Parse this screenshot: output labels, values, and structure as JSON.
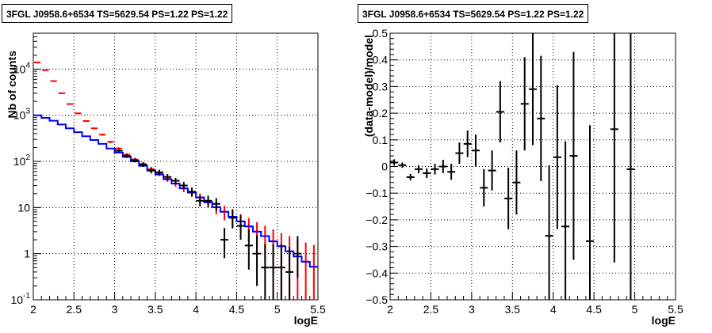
{
  "chart_data": [
    {
      "type": "step",
      "title": "3FGL J0958.6+6534 TS=5629.54 PS=1.22 PS=1.22",
      "xlabel": "logE",
      "ylabel": "Nb of counts",
      "xlim": [
        2,
        5.5
      ],
      "ylim": [
        0.1,
        60000
      ],
      "yscale": "log",
      "grid": true,
      "x_ticks": [
        "2",
        "2.5",
        "3",
        "3.5",
        "4",
        "4.5",
        "5",
        "5.5"
      ],
      "y_ticks": [
        {
          "v": 0.1,
          "label": "10",
          "exp": "-1"
        },
        {
          "v": 1,
          "label": "1",
          "exp": ""
        },
        {
          "v": 10,
          "label": "10",
          "exp": ""
        },
        {
          "v": 100,
          "label": "10",
          "exp": "2"
        },
        {
          "v": 1000,
          "label": "10",
          "exp": "3"
        },
        {
          "v": 10000,
          "label": "10",
          "exp": "4"
        }
      ],
      "bin_edges": [
        2.0,
        2.1,
        2.2,
        2.3,
        2.4,
        2.5,
        2.6,
        2.7,
        2.8,
        2.9,
        3.0,
        3.1,
        3.2,
        3.3,
        3.4,
        3.5,
        3.6,
        3.7,
        3.8,
        3.9,
        4.0,
        4.1,
        4.2,
        4.3,
        4.4,
        4.5,
        4.6,
        4.7,
        4.8,
        4.9,
        5.0,
        5.1,
        5.2,
        5.3,
        5.4,
        5.5
      ],
      "series": [
        {
          "kind": "model_step",
          "color": "#0000ff",
          "values": [
            1000,
            880,
            760,
            630,
            520,
            430,
            350,
            290,
            240,
            190,
            155,
            125,
            100,
            80,
            64,
            52,
            41,
            33,
            26,
            21,
            16.5,
            13,
            10.2,
            8.1,
            6.3,
            5.0,
            3.9,
            3.0,
            2.4,
            1.85,
            1.45,
            1.12,
            0.87,
            0.67,
            0.52
          ]
        },
        {
          "kind": "errorbars",
          "color": "#ff0000",
          "x": [
            2.05,
            2.15,
            2.25,
            2.35,
            2.45,
            2.55,
            2.65,
            2.75,
            2.85,
            2.95,
            3.05,
            3.15,
            3.25,
            3.35,
            3.45,
            3.55,
            3.65,
            3.75,
            3.85,
            3.95,
            4.05,
            4.15,
            4.25,
            4.35,
            4.45,
            4.55,
            4.65,
            4.75,
            4.85,
            4.95,
            5.05,
            5.15,
            5.25,
            5.35,
            5.45
          ],
          "y": [
            14000,
            9500,
            5500,
            3000,
            1750,
            1100,
            750,
            520,
            380,
            265,
            190,
            140,
            110,
            88,
            68,
            55,
            42,
            33,
            26,
            21,
            16.5,
            13,
            10.2,
            8.1,
            6.3,
            5.0,
            3.9,
            3.0,
            2.4,
            1.85,
            1.45,
            1.12,
            0.87,
            0.67,
            0.52
          ],
          "ylo": [
            13800,
            9350,
            5400,
            2950,
            1700,
            1060,
            720,
            495,
            360,
            250,
            178,
            130,
            100,
            79,
            60,
            48,
            36,
            28,
            21.5,
            17,
            12.8,
            9.8,
            7.1,
            5.3,
            3.8,
            2.8,
            1.9,
            1.2,
            0.75,
            0.35,
            0.1,
            0.1,
            0.1,
            0.1,
            0.1
          ],
          "yhi": [
            14200,
            9650,
            5600,
            3050,
            1800,
            1140,
            780,
            545,
            400,
            280,
            202,
            150,
            120,
            97,
            76,
            62,
            48,
            38.5,
            30.5,
            25,
            20.2,
            16.2,
            13.3,
            10.9,
            8.8,
            7.2,
            5.9,
            4.8,
            4.05,
            3.35,
            2.8,
            2.4,
            2.0,
            1.75,
            1.55
          ]
        },
        {
          "kind": "errorbars",
          "color": "#000000",
          "x": [
            3.05,
            3.15,
            3.25,
            3.35,
            3.45,
            3.55,
            3.65,
            3.75,
            3.85,
            3.95,
            4.05,
            4.15,
            4.25,
            4.35,
            4.45,
            4.55,
            4.65,
            4.75,
            4.85,
            4.95,
            5.05,
            5.15,
            5.25
          ],
          "y": [
            170,
            130,
            105,
            85,
            63,
            58,
            46,
            38,
            30,
            22,
            14,
            14,
            12,
            2,
            6,
            4,
            1.5,
            1,
            0.5,
            0.5,
            0.5,
            0.4,
            1
          ],
          "ylo": [
            158,
            119,
            95,
            76,
            55,
            50,
            39,
            32,
            25,
            17.5,
            10.5,
            10.5,
            8.5,
            0.8,
            3.5,
            2.0,
            0.45,
            0.2,
            0.1,
            0.1,
            0.1,
            0.1,
            0.3
          ],
          "yhi": [
            183,
            142,
            115,
            95,
            71,
            66,
            53,
            44,
            36,
            27,
            18,
            18,
            16,
            3.6,
            9.2,
            6.8,
            3.3,
            2.5,
            1.6,
            1.6,
            1.6,
            1.4,
            2.4
          ]
        }
      ]
    },
    {
      "type": "errorbar",
      "title": "3FGL J0958.6+6534 TS=5629.54 PS=1.22 PS=1.22",
      "xlabel": "logE",
      "ylabel": "(data-model)/model",
      "xlim": [
        2,
        5.5
      ],
      "ylim": [
        -0.5,
        0.5
      ],
      "grid": true,
      "x_ticks": [
        "2",
        "2.5",
        "3",
        "3.5",
        "4",
        "4.5",
        "5",
        "5.5"
      ],
      "y_ticks": [
        "-0.5",
        "-0.4",
        "-0.3",
        "-0.2",
        "-0.1",
        "0",
        "0.1",
        "0.2",
        "0.3",
        "0.4",
        "0.5"
      ],
      "points": {
        "x": [
          2.05,
          2.15,
          2.25,
          2.35,
          2.45,
          2.55,
          2.65,
          2.75,
          2.85,
          2.95,
          3.05,
          3.15,
          3.25,
          3.35,
          3.45,
          3.55,
          3.65,
          3.75,
          3.85,
          3.95,
          4.05,
          4.15,
          4.25,
          4.45,
          4.75,
          4.95
        ],
        "y": [
          0.015,
          0.005,
          -0.04,
          -0.01,
          -0.025,
          -0.01,
          0.0,
          -0.02,
          0.05,
          0.085,
          0.06,
          -0.08,
          -0.015,
          0.205,
          -0.12,
          -0.06,
          0.235,
          0.29,
          0.18,
          -0.26,
          0.035,
          -0.225,
          0.04,
          -0.28,
          0.14,
          -0.01
        ],
        "err": [
          0.012,
          0.01,
          0.012,
          0.015,
          0.018,
          0.02,
          0.025,
          0.03,
          0.04,
          0.05,
          0.06,
          0.07,
          0.075,
          0.115,
          0.115,
          0.12,
          0.175,
          0.21,
          0.235,
          0.265,
          0.27,
          0.32,
          0.39,
          0.435,
          0.5,
          0.52
        ]
      }
    }
  ]
}
